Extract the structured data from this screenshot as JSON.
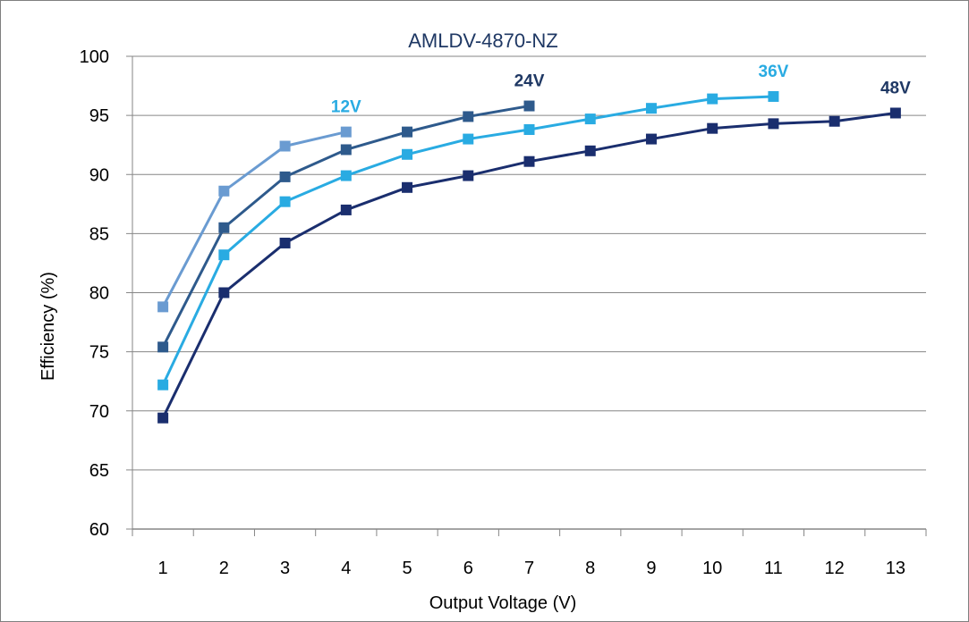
{
  "chart_data": {
    "type": "line",
    "title": "AMLDV-4870-NZ",
    "xlabel": "Output Voltage (V)",
    "ylabel": "Efficiency (%)",
    "categories": [
      "1",
      "2",
      "3",
      "4",
      "5",
      "6",
      "7",
      "8",
      "9",
      "10",
      "11",
      "12",
      "13"
    ],
    "ylim": [
      60,
      100
    ],
    "yticks": [
      60,
      65,
      70,
      75,
      80,
      85,
      90,
      95,
      100
    ],
    "grid": true,
    "marker": "square",
    "series": [
      {
        "name": "12V",
        "color": "#6a9bd1",
        "label_color": "#29abe2",
        "x": [
          1,
          2,
          3,
          4
        ],
        "values": [
          78.8,
          88.6,
          92.4,
          93.6
        ]
      },
      {
        "name": "24V",
        "color": "#2e5a8c",
        "label_color": "#1f3864",
        "x": [
          1,
          2,
          3,
          4,
          5,
          6,
          7
        ],
        "values": [
          75.4,
          85.5,
          89.8,
          92.1,
          93.6,
          94.9,
          95.8
        ]
      },
      {
        "name": "36V",
        "color": "#29abe2",
        "label_color": "#29abe2",
        "x": [
          1,
          2,
          3,
          4,
          5,
          6,
          7,
          8,
          9,
          10,
          11
        ],
        "values": [
          72.2,
          83.2,
          87.7,
          89.9,
          91.7,
          93.0,
          93.8,
          94.7,
          95.6,
          96.4,
          96.6
        ]
      },
      {
        "name": "48V",
        "color": "#1a2e6e",
        "label_color": "#1f3864",
        "x": [
          1,
          2,
          3,
          4,
          5,
          6,
          7,
          8,
          9,
          10,
          11,
          12,
          13
        ],
        "values": [
          69.4,
          80.0,
          84.2,
          87.0,
          88.9,
          89.9,
          91.1,
          92.0,
          93.0,
          93.9,
          94.3,
          94.5,
          95.2
        ]
      }
    ]
  }
}
